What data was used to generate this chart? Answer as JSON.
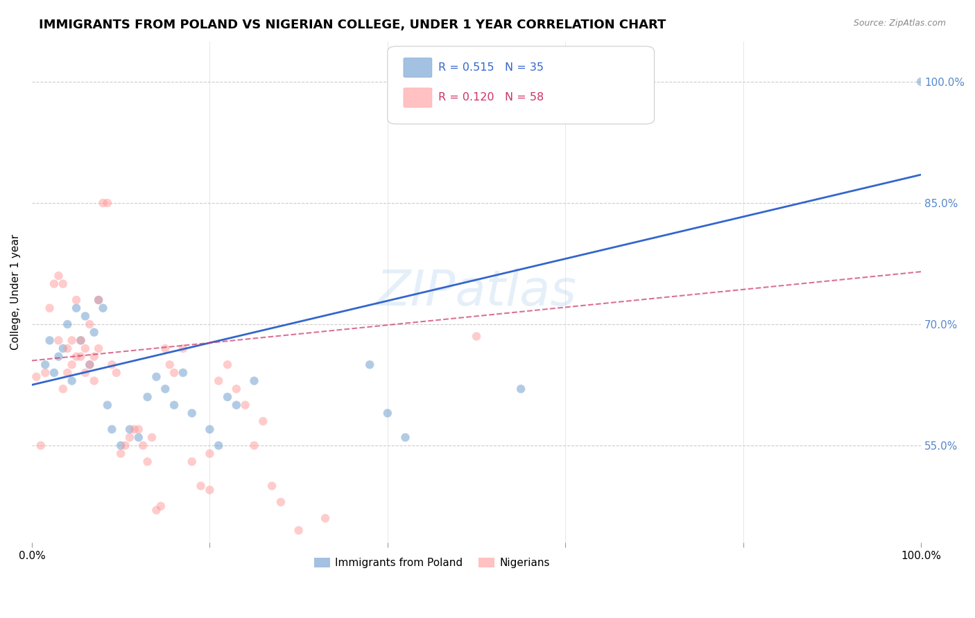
{
  "title": "IMMIGRANTS FROM POLAND VS NIGERIAN COLLEGE, UNDER 1 YEAR CORRELATION CHART",
  "source": "Source: ZipAtlas.com",
  "ylabel": "College, Under 1 year",
  "watermark": "ZIPatlas",
  "legend_blue_R": "0.515",
  "legend_blue_N": "35",
  "legend_pink_R": "0.120",
  "legend_pink_N": "58",
  "legend_blue_label": "Immigrants from Poland",
  "legend_pink_label": "Nigerians",
  "xlim": [
    0.0,
    100.0
  ],
  "ylim": [
    43.0,
    105.0
  ],
  "blue_color": "#6699cc",
  "pink_color": "#ff9999",
  "trend_blue_color": "#3366cc",
  "trend_pink_color": "#cc3366",
  "blue_points_x": [
    1.5,
    2.0,
    2.5,
    3.0,
    3.5,
    4.0,
    4.5,
    5.0,
    5.5,
    6.0,
    6.5,
    7.0,
    7.5,
    8.0,
    8.5,
    9.0,
    10.0,
    11.0,
    12.0,
    13.0,
    14.0,
    15.0,
    16.0,
    17.0,
    18.0,
    20.0,
    21.0,
    22.0,
    23.0,
    25.0,
    38.0,
    40.0,
    42.0,
    55.0,
    100.0
  ],
  "blue_points_y": [
    65.0,
    68.0,
    64.0,
    66.0,
    67.0,
    70.0,
    63.0,
    72.0,
    68.0,
    71.0,
    65.0,
    69.0,
    73.0,
    72.0,
    60.0,
    57.0,
    55.0,
    57.0,
    56.0,
    61.0,
    63.5,
    62.0,
    60.0,
    64.0,
    59.0,
    57.0,
    55.0,
    61.0,
    60.0,
    63.0,
    65.0,
    59.0,
    56.0,
    62.0,
    100.0
  ],
  "pink_points_x": [
    0.5,
    1.0,
    1.5,
    2.0,
    2.5,
    3.0,
    3.0,
    3.5,
    3.5,
    4.0,
    4.0,
    4.5,
    4.5,
    5.0,
    5.0,
    5.5,
    5.5,
    6.0,
    6.0,
    6.5,
    6.5,
    7.0,
    7.0,
    7.5,
    7.5,
    8.0,
    8.5,
    9.0,
    9.5,
    10.0,
    10.5,
    11.0,
    11.5,
    12.0,
    12.5,
    13.0,
    13.5,
    14.0,
    14.5,
    15.0,
    15.5,
    16.0,
    17.0,
    18.0,
    19.0,
    20.0,
    20.0,
    21.0,
    22.0,
    23.0,
    24.0,
    25.0,
    26.0,
    27.0,
    28.0,
    30.0,
    33.0,
    50.0
  ],
  "pink_points_y": [
    63.5,
    55.0,
    64.0,
    72.0,
    75.0,
    76.0,
    68.0,
    75.0,
    62.0,
    67.0,
    64.0,
    68.0,
    65.0,
    73.0,
    66.0,
    68.0,
    66.0,
    67.0,
    64.0,
    70.0,
    65.0,
    66.0,
    63.0,
    73.0,
    67.0,
    85.0,
    85.0,
    65.0,
    64.0,
    54.0,
    55.0,
    56.0,
    57.0,
    57.0,
    55.0,
    53.0,
    56.0,
    47.0,
    47.5,
    67.0,
    65.0,
    64.0,
    67.0,
    53.0,
    50.0,
    49.5,
    54.0,
    63.0,
    65.0,
    62.0,
    60.0,
    55.0,
    58.0,
    50.0,
    48.0,
    44.5,
    46.0,
    68.5
  ],
  "blue_trend_y_start": 62.5,
  "blue_trend_y_end": 88.5,
  "pink_trend_y_start": 65.5,
  "pink_trend_y_end": 76.5,
  "marker_size": 80,
  "marker_alpha": 0.5,
  "background_color": "#ffffff",
  "grid_color": "#cccccc",
  "title_fontsize": 13,
  "label_fontsize": 11,
  "tick_fontsize": 11,
  "right_tick_color": "#5588cc"
}
